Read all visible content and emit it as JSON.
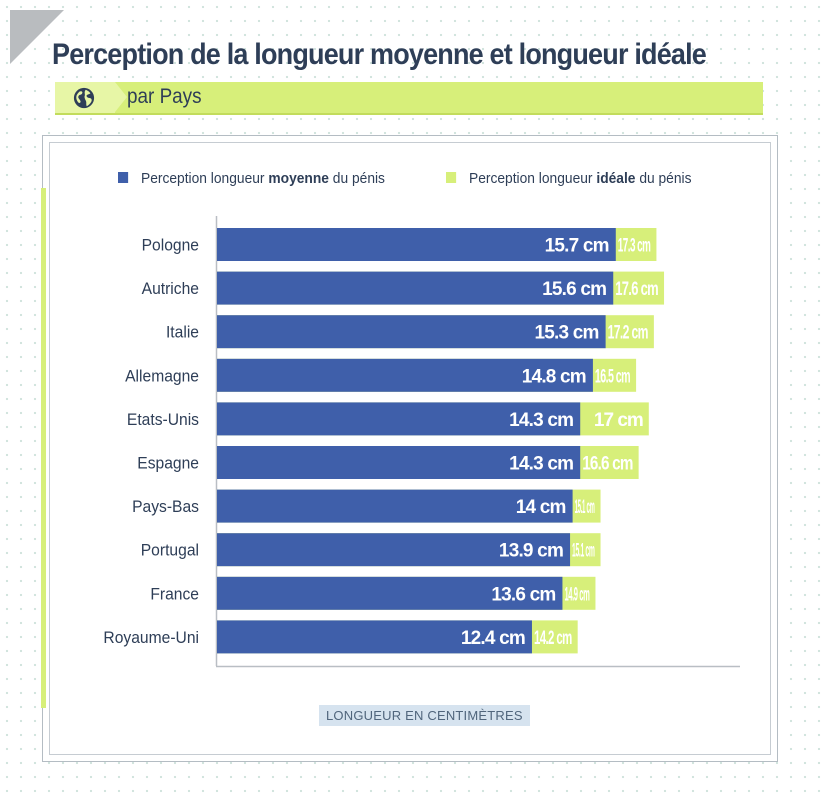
{
  "title": "Perception de la longueur moyenne et longueur idéale",
  "subtitle": "par Pays",
  "colors": {
    "moyenne": "#3f5faa",
    "ideale": "#d7ef7a",
    "text": "#2e3e57"
  },
  "legend": {
    "moyenne": {
      "pre": "Perception longueur ",
      "bold": "moyenne",
      "post": " du pénis"
    },
    "ideale": {
      "pre": "Perception longueur ",
      "bold": "idéale",
      "post": " du pénis"
    }
  },
  "chart_data": {
    "type": "bar",
    "orientation": "horizontal",
    "title": "Perception de la longueur moyenne et longueur idéale",
    "subtitle": "par Pays",
    "xlabel": "LONGUEUR EN CENTIMÈTRES",
    "ylabel": "",
    "xlim": [
      0,
      20.5
    ],
    "categories": [
      "Pologne",
      "Autriche",
      "Italie",
      "Allemagne",
      "Etats-Unis",
      "Espagne",
      "Pays-Bas",
      "Portugal",
      "France",
      "Royaume-Uni"
    ],
    "series": [
      {
        "name": "Perception longueur moyenne du pénis",
        "values": [
          15.7,
          15.6,
          15.3,
          14.8,
          14.3,
          14.3,
          14,
          13.9,
          13.6,
          12.4
        ],
        "labels": [
          "15.7 cm",
          "15.6 cm",
          "15.3 cm",
          "14.8 cm",
          "14.3 cm",
          "14.3 cm",
          "14 cm",
          "13.9 cm",
          "13.6 cm",
          "12.4 cm"
        ]
      },
      {
        "name": "Perception longueur idéale du pénis",
        "values": [
          17.3,
          17.6,
          17.2,
          16.5,
          17,
          16.6,
          15.1,
          15.1,
          14.9,
          14.2
        ],
        "labels": [
          "17.3 cm",
          "17.6 cm",
          "17.2 cm",
          "16.5 cm",
          "17 cm",
          "16.6 cm",
          "15.1 cm",
          "15.1 cm",
          "14.9 cm",
          "14.2 cm"
        ]
      }
    ],
    "grid": false,
    "legend_position": "top"
  }
}
